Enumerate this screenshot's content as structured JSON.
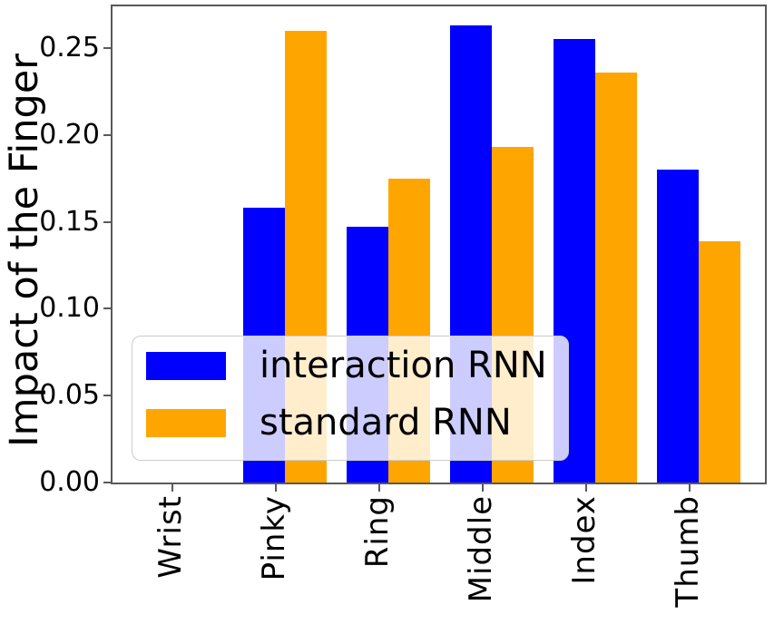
{
  "chart_data": {
    "type": "bar",
    "title": "",
    "xlabel": "",
    "ylabel": "Impact of the Finger",
    "categories": [
      "Wrist",
      "Pinky",
      "Ring",
      "Middle",
      "Index",
      "Thumb"
    ],
    "series": [
      {
        "name": "interaction RNN",
        "color": "#0000ff",
        "values": [
          0,
          0.158,
          0.147,
          0.263,
          0.255,
          0.18
        ]
      },
      {
        "name": "standard RNN",
        "color": "#ffa500",
        "values": [
          0,
          0.26,
          0.175,
          0.193,
          0.236,
          0.139
        ]
      }
    ],
    "ylim": [
      0,
      0.275
    ],
    "yticks": [
      0.0,
      0.05,
      0.1,
      0.15,
      0.2,
      0.25
    ],
    "ytick_labels": [
      "0.00",
      "0.05",
      "0.10",
      "0.15",
      "0.20",
      "0.25"
    ],
    "grid": false,
    "legend_position": "lower left inside plot",
    "spine_color": "#595959",
    "background_color": "#ffffff"
  }
}
